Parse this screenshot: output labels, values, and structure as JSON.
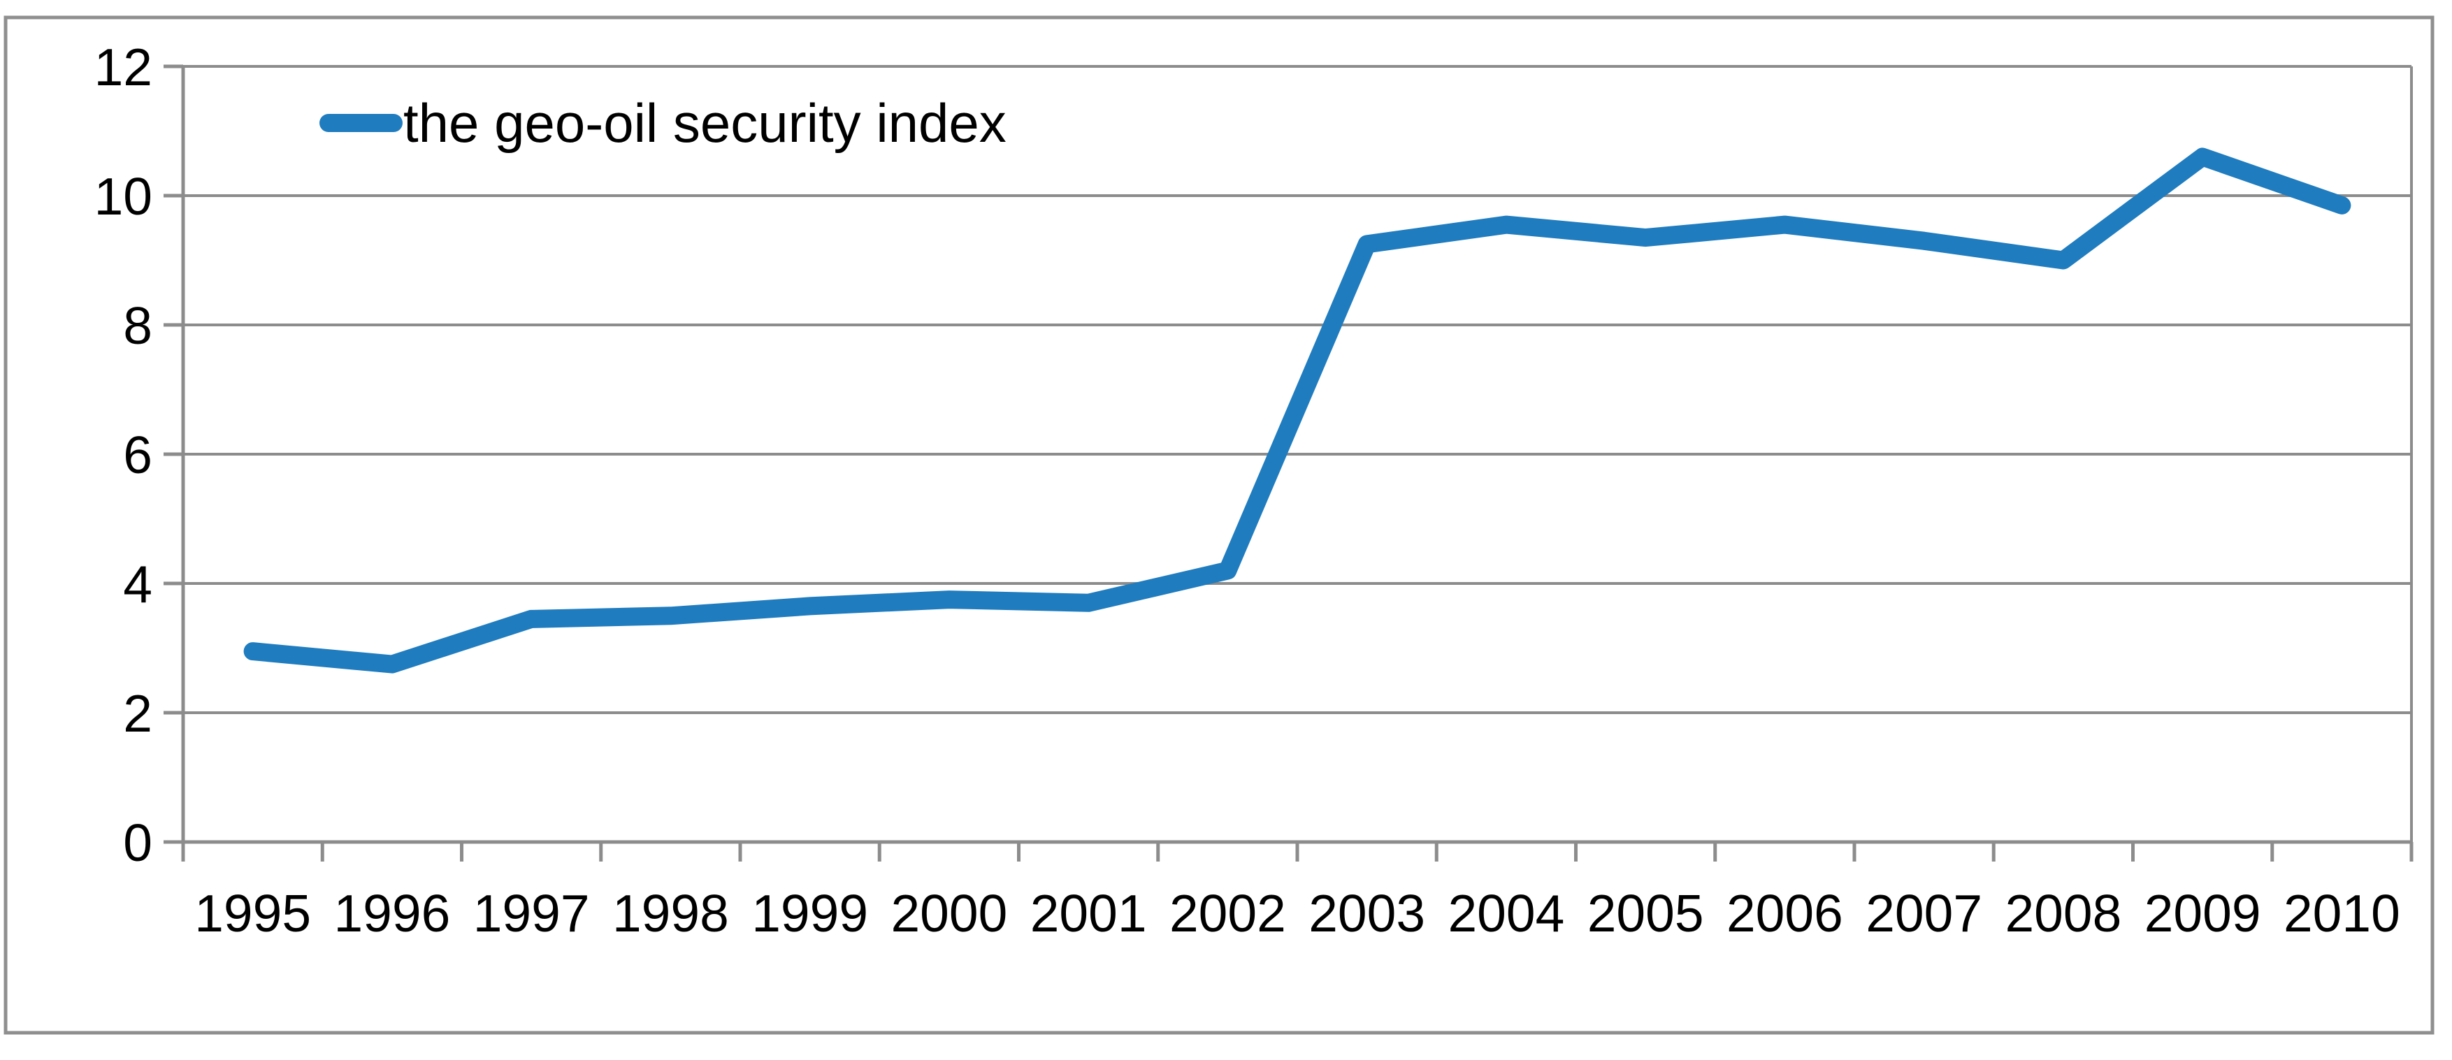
{
  "chart_data": {
    "type": "line",
    "categories": [
      "1995",
      "1996",
      "1997",
      "1998",
      "1999",
      "2000",
      "2001",
      "2002",
      "2003",
      "2004",
      "2005",
      "2006",
      "2007",
      "2008",
      "2009",
      "2010"
    ],
    "series": [
      {
        "name": "the geo-oil security index",
        "values": [
          2.95,
          2.75,
          3.45,
          3.5,
          3.65,
          3.75,
          3.7,
          4.2,
          9.25,
          9.55,
          9.35,
          9.55,
          9.3,
          9.0,
          10.6,
          9.85
        ]
      }
    ],
    "title": "",
    "xlabel": "",
    "ylabel": "",
    "ylim": [
      0,
      12
    ],
    "yticks": [
      0,
      2,
      4,
      6,
      8,
      10,
      12
    ],
    "grid": "horizontal-major",
    "legend_position": "top-left-inside"
  },
  "legend": {
    "label": "the geo-oil security index"
  },
  "colors": {
    "series_line": "#1F7CBF",
    "gridline": "#8C8C8C",
    "axis": "#8C8C8C",
    "tick": "#8C8C8C",
    "chart_border": "#8F8F8F",
    "label_text": "#000000",
    "background": "#FFFFFF"
  }
}
